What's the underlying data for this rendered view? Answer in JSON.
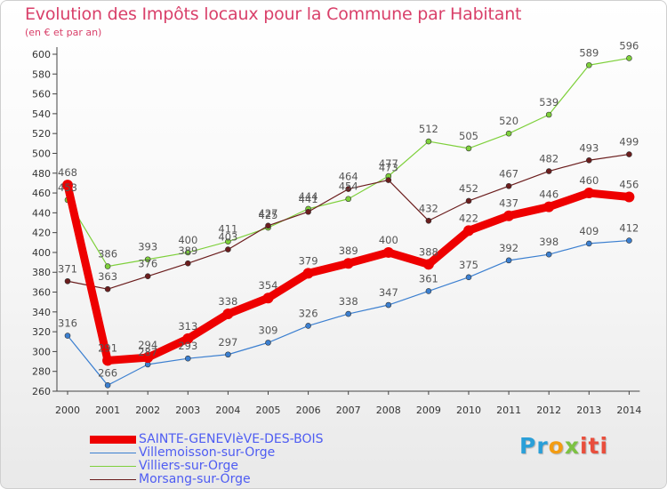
{
  "chart_data": {
    "type": "line",
    "title": "Evolution des Impôts locaux pour la Commune par Habitant",
    "subtitle": "(en € et par an)",
    "xlabel": "",
    "ylabel": "",
    "categories": [
      "2000",
      "2001",
      "2002",
      "2003",
      "2004",
      "2005",
      "2006",
      "2007",
      "2008",
      "2009",
      "2010",
      "2011",
      "2012",
      "2013",
      "2014"
    ],
    "ylim": [
      260,
      600
    ],
    "yticks": [
      260,
      280,
      300,
      320,
      340,
      360,
      380,
      400,
      420,
      440,
      460,
      480,
      500,
      520,
      540,
      560,
      580,
      600
    ],
    "grid": false,
    "legend_position": "bottom-left",
    "series": [
      {
        "name": "SAINTE-GENEVIèVE-DES-BOIS",
        "color": "#ee0000",
        "highlight": true,
        "values": [
          468,
          291,
          294,
          313,
          338,
          354,
          379,
          389,
          400,
          388,
          422,
          437,
          446,
          460,
          456
        ]
      },
      {
        "name": "Villemoisson-sur-Orge",
        "color": "#3b7fd0",
        "highlight": false,
        "values": [
          316,
          266,
          287,
          293,
          297,
          309,
          326,
          338,
          347,
          361,
          375,
          392,
          398,
          409,
          412
        ]
      },
      {
        "name": "Villiers-sur-Orge",
        "color": "#7ed03b",
        "highlight": false,
        "values": [
          453,
          386,
          393,
          400,
          411,
          425,
          444,
          454,
          477,
          512,
          505,
          520,
          539,
          589,
          596
        ]
      },
      {
        "name": "Morsang-sur-Orge",
        "color": "#6b1d1d",
        "highlight": false,
        "values": [
          371,
          363,
          376,
          389,
          403,
          427,
          441,
          464,
          473,
          432,
          452,
          467,
          482,
          493,
          499
        ]
      }
    ]
  },
  "logo": {
    "letters": [
      "Pr",
      "o",
      "x",
      "iti"
    ]
  }
}
